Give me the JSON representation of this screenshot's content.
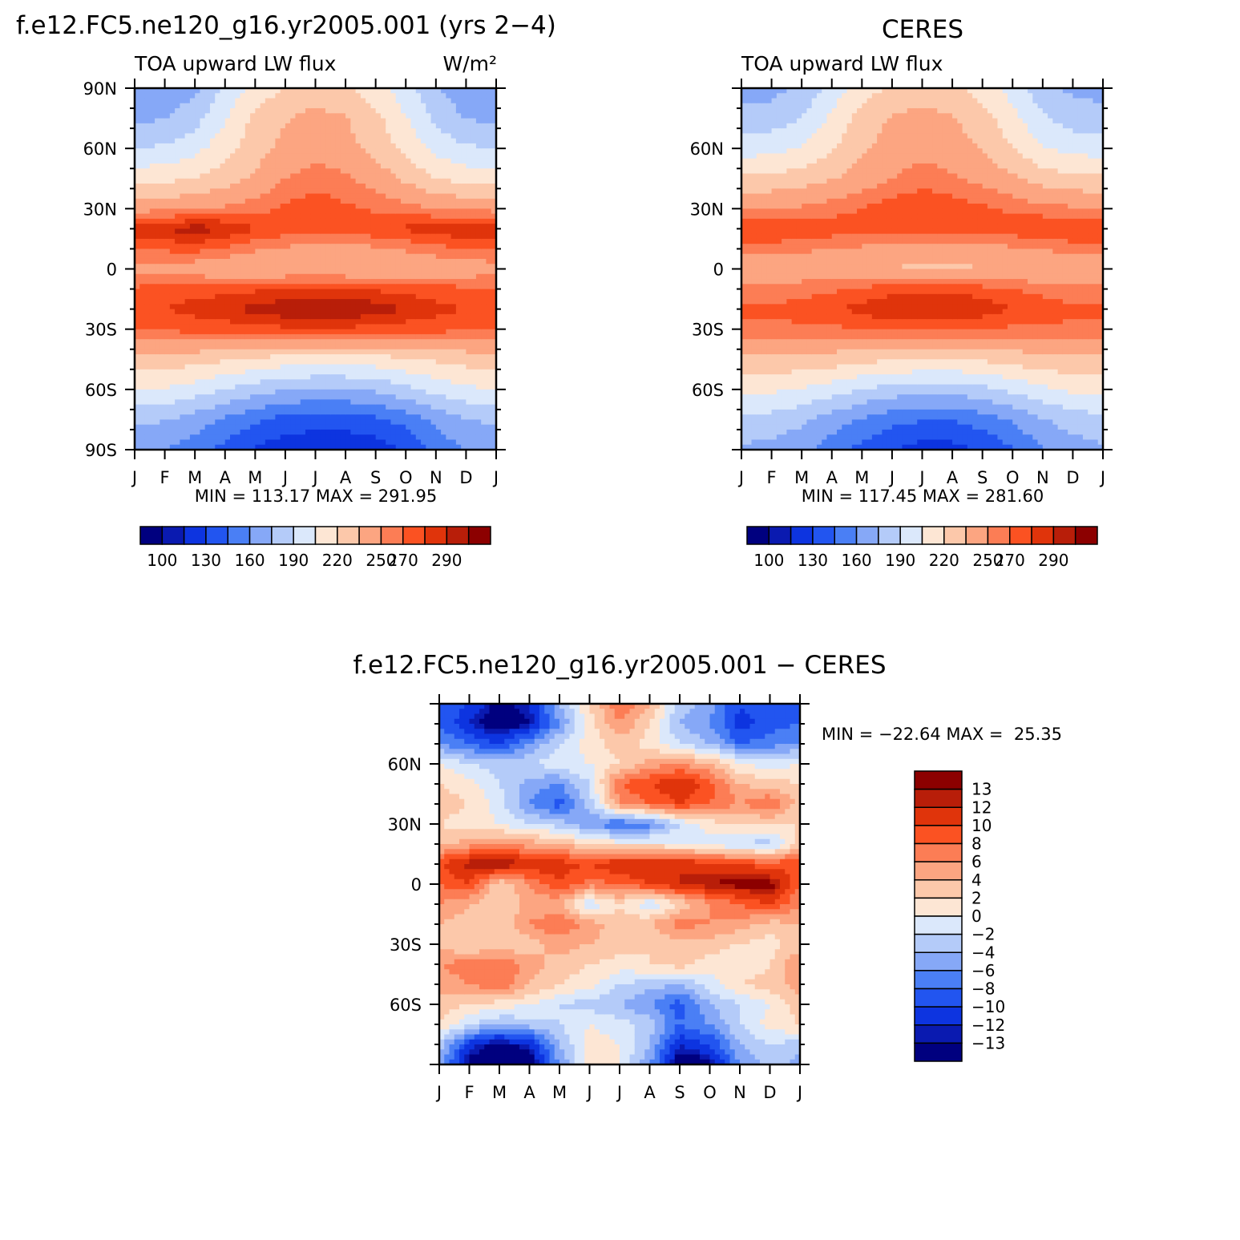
{
  "figure": {
    "months": [
      "J",
      "F",
      "M",
      "A",
      "M",
      "J",
      "J",
      "A",
      "S",
      "O",
      "N",
      "D",
      "J"
    ],
    "colors": {
      "abs": [
        "#00007f",
        "#0a1ab0",
        "#0d34e0",
        "#2255f0",
        "#4a7ff5",
        "#86a8f7",
        "#b4cbf9",
        "#dbe8fb",
        "#fde6d4",
        "#fcc8aa",
        "#fca581",
        "#fc7d55",
        "#fb5222",
        "#e0340b",
        "#b81e09",
        "#8c0000"
      ],
      "diff": [
        "#00007f",
        "#0a1ab0",
        "#0d34e0",
        "#2255f0",
        "#4a7ff5",
        "#86a8f7",
        "#b4cbf9",
        "#dbe8fb",
        "#fde6d4",
        "#fcc8aa",
        "#fca581",
        "#fc7d55",
        "#fb5222",
        "#e0340b",
        "#b81e09",
        "#8c0000"
      ]
    }
  },
  "chart_data": [
    {
      "id": "model",
      "type": "heatmap",
      "title": "f.e12.FC5.ne120_g16.yr2005.001 (yrs 2−4)",
      "left_label": "TOA upward LW flux",
      "right_label": "W/m²",
      "xlabel": "",
      "ylabel": "",
      "x_ticks": [
        "J",
        "F",
        "M",
        "A",
        "M",
        "J",
        "J",
        "A",
        "S",
        "O",
        "N",
        "D",
        "J"
      ],
      "y_ticks": [
        "90N",
        "60N",
        "30N",
        "0",
        "30S",
        "60S",
        "90S"
      ],
      "ylim": [
        -90,
        90
      ],
      "stats": "MIN = 113.17 MAX = 291.95",
      "colorbar_labels": [
        "100",
        "130",
        "160",
        "190",
        "220",
        "250",
        "270",
        "290"
      ],
      "latitudes": [
        90,
        75,
        60,
        45,
        30,
        20,
        10,
        0,
        -10,
        -20,
        -30,
        -45,
        -60,
        -75,
        -90
      ],
      "values": [
        [
          163,
          163,
          172,
          192,
          212,
          220,
          226,
          222,
          212,
          196,
          176,
          166,
          163
        ],
        [
          172,
          174,
          184,
          204,
          224,
          234,
          240,
          236,
          224,
          206,
          186,
          174,
          172
        ],
        [
          190,
          192,
          200,
          214,
          228,
          240,
          244,
          240,
          230,
          216,
          200,
          192,
          190
        ],
        [
          214,
          216,
          220,
          228,
          238,
          250,
          256,
          252,
          244,
          232,
          220,
          214,
          214
        ],
        [
          246,
          246,
          248,
          252,
          256,
          262,
          266,
          262,
          258,
          254,
          250,
          248,
          246
        ],
        [
          276,
          280,
          286,
          280,
          270,
          266,
          264,
          264,
          268,
          272,
          276,
          278,
          276
        ],
        [
          262,
          262,
          264,
          258,
          252,
          248,
          246,
          246,
          248,
          252,
          256,
          260,
          262
        ],
        [
          244,
          244,
          242,
          238,
          236,
          238,
          238,
          238,
          236,
          236,
          240,
          242,
          244
        ],
        [
          262,
          264,
          266,
          266,
          268,
          270,
          270,
          270,
          268,
          266,
          264,
          262,
          262
        ],
        [
          268,
          270,
          274,
          278,
          284,
          288,
          290,
          290,
          286,
          280,
          274,
          270,
          268
        ],
        [
          262,
          262,
          264,
          264,
          266,
          268,
          268,
          268,
          266,
          264,
          264,
          262,
          262
        ],
        [
          228,
          228,
          226,
          222,
          218,
          214,
          212,
          212,
          214,
          218,
          222,
          226,
          228
        ],
        [
          206,
          204,
          198,
          190,
          182,
          176,
          174,
          174,
          178,
          186,
          196,
          202,
          206
        ],
        [
          178,
          176,
          168,
          158,
          148,
          140,
          138,
          138,
          142,
          150,
          164,
          174,
          178
        ],
        [
          162,
          160,
          152,
          140,
          128,
          120,
          117,
          117,
          122,
          132,
          150,
          160,
          162
        ]
      ]
    },
    {
      "id": "obs",
      "type": "heatmap",
      "title": "CERES",
      "left_label": "TOA upward LW flux",
      "right_label": "",
      "xlabel": "",
      "ylabel": "",
      "x_ticks": [
        "J",
        "F",
        "M",
        "A",
        "M",
        "J",
        "J",
        "A",
        "S",
        "O",
        "N",
        "D",
        "J"
      ],
      "y_ticks": [
        "60N",
        "30N",
        "0",
        "30S",
        "60S"
      ],
      "ylim": [
        -90,
        90
      ],
      "stats": "MIN = 117.45 MAX = 281.60",
      "colorbar_labels": [
        "100",
        "130",
        "160",
        "190",
        "220",
        "250",
        "270",
        "290"
      ],
      "latitudes": [
        90,
        75,
        60,
        45,
        30,
        20,
        10,
        0,
        -10,
        -20,
        -30,
        -45,
        -60,
        -75,
        -90
      ],
      "values": [
        [
          170,
          170,
          178,
          196,
          214,
          222,
          228,
          224,
          214,
          198,
          180,
          172,
          170
        ],
        [
          180,
          182,
          190,
          208,
          226,
          236,
          240,
          236,
          226,
          210,
          192,
          182,
          180
        ],
        [
          198,
          200,
          206,
          218,
          232,
          242,
          246,
          242,
          234,
          220,
          206,
          200,
          198
        ],
        [
          222,
          224,
          228,
          234,
          242,
          250,
          256,
          252,
          246,
          238,
          228,
          224,
          222
        ],
        [
          250,
          250,
          252,
          256,
          260,
          266,
          268,
          266,
          262,
          258,
          254,
          252,
          250
        ],
        [
          272,
          272,
          270,
          266,
          264,
          264,
          264,
          264,
          264,
          266,
          270,
          272,
          272
        ],
        [
          254,
          254,
          252,
          250,
          248,
          246,
          244,
          244,
          246,
          248,
          250,
          254,
          254
        ],
        [
          240,
          240,
          240,
          238,
          236,
          234,
          232,
          232,
          234,
          236,
          238,
          240,
          240
        ],
        [
          254,
          254,
          256,
          258,
          262,
          266,
          268,
          268,
          264,
          260,
          256,
          254,
          254
        ],
        [
          262,
          262,
          264,
          268,
          274,
          278,
          280,
          280,
          276,
          270,
          266,
          262,
          262
        ],
        [
          258,
          258,
          258,
          258,
          260,
          262,
          262,
          262,
          260,
          258,
          258,
          258,
          258
        ],
        [
          232,
          232,
          230,
          228,
          224,
          222,
          220,
          220,
          222,
          226,
          230,
          232,
          232
        ],
        [
          210,
          208,
          204,
          198,
          190,
          184,
          182,
          182,
          186,
          194,
          202,
          208,
          210
        ],
        [
          186,
          184,
          178,
          168,
          158,
          150,
          146,
          146,
          152,
          162,
          174,
          182,
          186
        ],
        [
          172,
          170,
          164,
          152,
          140,
          130,
          124,
          124,
          132,
          144,
          160,
          168,
          172
        ]
      ]
    },
    {
      "id": "diff",
      "type": "heatmap",
      "title": "f.e12.FC5.ne120_g16.yr2005.001 − CERES",
      "xlabel": "",
      "ylabel": "",
      "x_ticks": [
        "J",
        "F",
        "M",
        "A",
        "M",
        "J",
        "J",
        "A",
        "S",
        "O",
        "N",
        "D",
        "J"
      ],
      "y_ticks": [
        "60N",
        "30N",
        "0",
        "30S",
        "60S"
      ],
      "ylim": [
        -90,
        90
      ],
      "stats": "MIN = −22.64 MAX =  25.35",
      "colorbar_labels": [
        "13",
        "12",
        "10",
        "8",
        "6",
        "4",
        "2",
        "0",
        "−2",
        "−4",
        "−6",
        "−8",
        "−10",
        "−12",
        "−13"
      ],
      "latitudes": [
        90,
        80,
        70,
        60,
        50,
        40,
        30,
        20,
        10,
        0,
        -10,
        -20,
        -30,
        -40,
        -50,
        -60,
        -70,
        -80,
        -90
      ],
      "values": [
        [
          -8,
          -10,
          -14,
          -12,
          -4,
          2,
          8,
          4,
          -3,
          -5,
          -10,
          -8,
          -8
        ],
        [
          -8,
          -12,
          -15,
          -13,
          -6,
          1,
          6,
          2,
          -4,
          -6,
          -11,
          -9,
          -8
        ],
        [
          -6,
          -8,
          -10,
          -6,
          -2,
          1,
          3,
          1,
          -2,
          -4,
          -8,
          -7,
          -6
        ],
        [
          0,
          -2,
          -3,
          -2,
          -1,
          0,
          2,
          5,
          6,
          4,
          0,
          -1,
          0
        ],
        [
          2,
          1,
          -2,
          -5,
          -6,
          -2,
          8,
          10,
          12,
          9,
          4,
          3,
          2
        ],
        [
          3,
          2,
          -1,
          -6,
          -9,
          -3,
          6,
          8,
          10,
          8,
          6,
          8,
          3
        ],
        [
          2,
          1,
          0,
          -2,
          -3,
          -6,
          -8,
          -7,
          -2,
          1,
          2,
          2,
          2
        ],
        [
          3,
          5,
          6,
          5,
          4,
          2,
          1,
          1,
          0,
          -1,
          -2,
          -3,
          3
        ],
        [
          10,
          13,
          14,
          12,
          11,
          10,
          12,
          12,
          12,
          11,
          10,
          9,
          10
        ],
        [
          8,
          10,
          2,
          6,
          10,
          7,
          8,
          10,
          12,
          13,
          14,
          14,
          8
        ],
        [
          6,
          4,
          2,
          5,
          4,
          -2,
          2,
          -2,
          2,
          6,
          8,
          10,
          6
        ],
        [
          4,
          3,
          2,
          6,
          8,
          5,
          3,
          4,
          7,
          6,
          5,
          3,
          4
        ],
        [
          3,
          2,
          2,
          3,
          5,
          4,
          3,
          2,
          3,
          3,
          2,
          1,
          3
        ],
        [
          6,
          7,
          8,
          5,
          3,
          2,
          1,
          2,
          3,
          1,
          0,
          2,
          6
        ],
        [
          5,
          6,
          8,
          4,
          2,
          1,
          -2,
          -3,
          -4,
          -1,
          2,
          3,
          5
        ],
        [
          3,
          2,
          1,
          0,
          -2,
          -3,
          -4,
          -6,
          -9,
          -4,
          -2,
          0,
          3
        ],
        [
          2,
          -2,
          -4,
          -3,
          -2,
          0,
          -1,
          -3,
          -8,
          -6,
          -2,
          1,
          2
        ],
        [
          -3,
          -11,
          -14,
          -12,
          -4,
          1,
          0,
          -4,
          -12,
          -10,
          -4,
          -2,
          -3
        ],
        [
          -5,
          -14,
          -16,
          -15,
          -6,
          1,
          0,
          -6,
          -15,
          -14,
          -6,
          -3,
          -5
        ]
      ]
    }
  ]
}
